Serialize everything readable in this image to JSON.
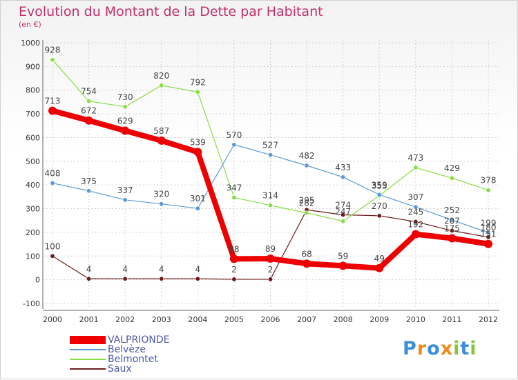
{
  "title": "Evolution du Montant de la Dette par Habitant",
  "subtitle": "(en €)",
  "logo": "Proxiti",
  "chart_data": {
    "type": "line",
    "title": "Evolution du Montant de la Dette par Habitant",
    "subtitle": "(en €)",
    "xlabel": "",
    "ylabel": "",
    "x": [
      "2000",
      "2001",
      "2002",
      "2003",
      "2004",
      "2005",
      "2006",
      "2007",
      "2008",
      "2009",
      "2010",
      "2011",
      "2012"
    ],
    "ylim": [
      -100,
      1000
    ],
    "yticks": [
      -100,
      0,
      100,
      200,
      300,
      400,
      500,
      600,
      700,
      800,
      900,
      1000
    ],
    "grid": true,
    "legend_position": "bottom-left",
    "series": [
      {
        "name": "VALPRIONDE",
        "color": "#ee0000",
        "values": [
          713,
          672,
          629,
          587,
          539,
          88,
          89,
          68,
          59,
          49,
          192,
          175,
          151
        ]
      },
      {
        "name": "Belvèze",
        "color": "#5b9ad5",
        "values": [
          408,
          375,
          337,
          320,
          301,
          570,
          527,
          482,
          433,
          359,
          307,
          252,
          199
        ]
      },
      {
        "name": "Belmontet",
        "color": "#88dd44",
        "values": [
          928,
          754,
          730,
          820,
          792,
          347,
          314,
          282,
          247,
          355,
          473,
          429,
          378
        ]
      },
      {
        "name": "Saux",
        "color": "#6b1a1a",
        "values": [
          100,
          4,
          4,
          4,
          4,
          2,
          2,
          295,
          274,
          270,
          245,
          207,
          180
        ]
      }
    ]
  }
}
